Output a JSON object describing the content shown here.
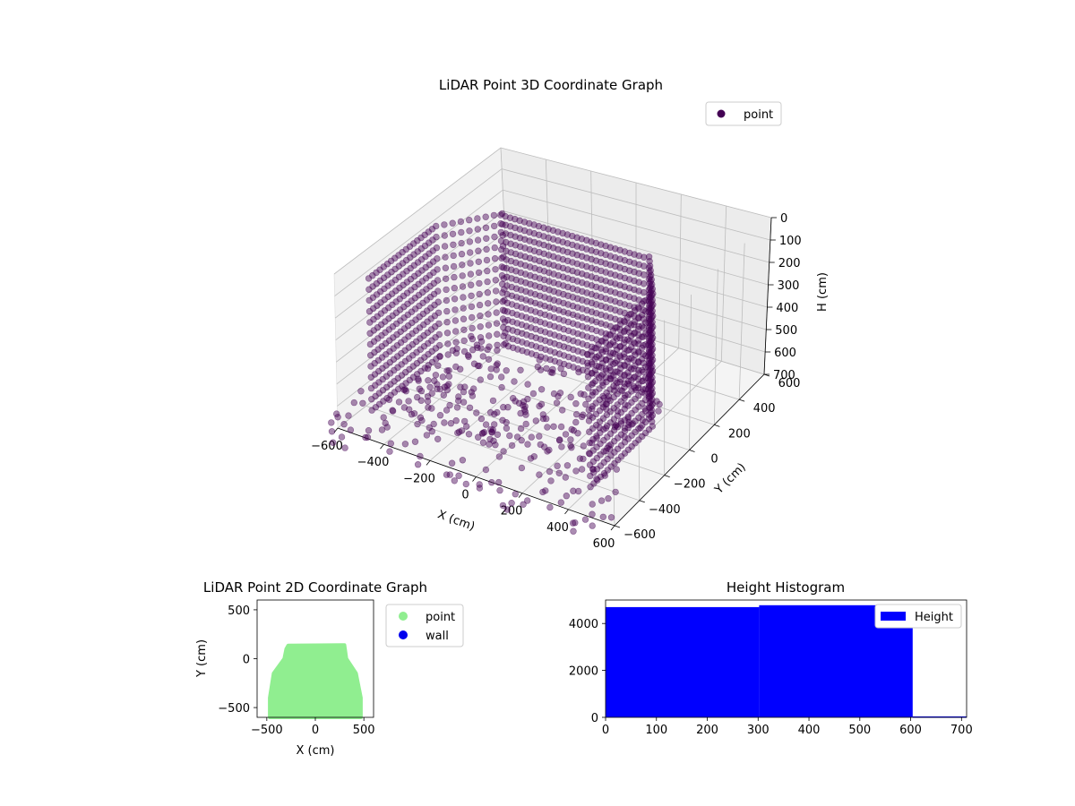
{
  "chart_data": [
    {
      "type": "scatter3d",
      "title": "LiDAR Point 3D Coordinate Graph",
      "xlabel": "X (cm)",
      "ylabel": "Y (cm)",
      "zlabel": "H (cm)",
      "xlim": [
        -600,
        600
      ],
      "ylim": [
        -600,
        600
      ],
      "zlim": [
        0,
        700
      ],
      "z_inverted": true,
      "x_ticks": [
        -600,
        -400,
        -200,
        0,
        200,
        400,
        600
      ],
      "y_ticks": [
        -600,
        -400,
        -200,
        0,
        200,
        400,
        600
      ],
      "z_ticks": [
        0,
        100,
        200,
        300,
        400,
        500,
        600,
        700
      ],
      "grid": true,
      "legend": {
        "placement": "upper-right",
        "entries": [
          "point"
        ]
      },
      "series": [
        {
          "name": "point",
          "color": "#440154",
          "shape": "room scan: U-shaped walls from H=0 to H=600 spanning X -500 to 500 and Y -550 to 150, floor and scattered low points"
        }
      ]
    },
    {
      "type": "scatter",
      "title": "LiDAR Point 2D Coordinate Graph",
      "xlabel": "X (cm)",
      "ylabel": "Y (cm)",
      "xlim": [
        -600,
        600
      ],
      "ylim": [
        -600,
        600
      ],
      "x_ticks": [
        -500,
        0,
        500
      ],
      "y_ticks": [
        -500,
        0,
        500
      ],
      "legend": {
        "placement": "outside-right",
        "entries": [
          "point",
          "wall"
        ]
      },
      "series": [
        {
          "name": "point",
          "color": "#90ee90",
          "outline_xy": [
            [
              -470,
              -600
            ],
            [
              -470,
              -400
            ],
            [
              -430,
              -150
            ],
            [
              -320,
              0
            ],
            [
              -300,
              100
            ],
            [
              -280,
              135
            ],
            [
              300,
              140
            ],
            [
              320,
              0
            ],
            [
              420,
              -150
            ],
            [
              470,
              -400
            ],
            [
              470,
              -600
            ]
          ]
        },
        {
          "name": "wall",
          "color": "#0000ee",
          "points": []
        }
      ]
    },
    {
      "type": "histogram",
      "title": "Height Histogram",
      "xlim": [
        0,
        710
      ],
      "ylim": [
        0,
        5000
      ],
      "x_ticks": [
        0,
        100,
        200,
        300,
        400,
        500,
        600,
        700
      ],
      "y_ticks": [
        0,
        2000,
        4000
      ],
      "legend": {
        "placement": "upper-right",
        "entries": [
          "Height"
        ]
      },
      "series": [
        {
          "name": "Height",
          "color": "#0000ff",
          "bins": [
            {
              "x0": 0,
              "x1": 302,
              "count": 4700
            },
            {
              "x0": 302,
              "x1": 604,
              "count": 4780
            },
            {
              "x0": 604,
              "x1": 710,
              "count": 40
            }
          ]
        }
      ]
    }
  ]
}
